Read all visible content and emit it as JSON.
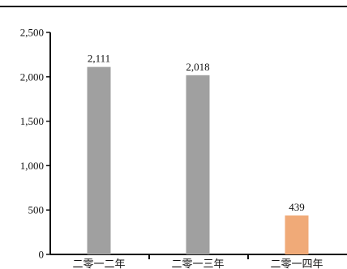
{
  "chart_data": {
    "type": "bar",
    "categories": [
      "二零一二年",
      "二零一三年",
      "二零一四年"
    ],
    "values": [
      2111,
      2018,
      439
    ],
    "data_labels": [
      "2,111",
      "2,018",
      "439"
    ],
    "bar_colors": [
      "#a0a0a0",
      "#a0a0a0",
      "#f0aa78"
    ],
    "ylim": [
      0,
      2500
    ],
    "yticks": [
      0,
      500,
      1000,
      1500,
      2000,
      2500
    ],
    "ytick_labels": [
      "0",
      "500",
      "1,000",
      "1,500",
      "2,000",
      "2,500"
    ],
    "grid": false,
    "legend": "none"
  },
  "colors": {
    "axis": "#111111",
    "top_rule": "#111111"
  }
}
